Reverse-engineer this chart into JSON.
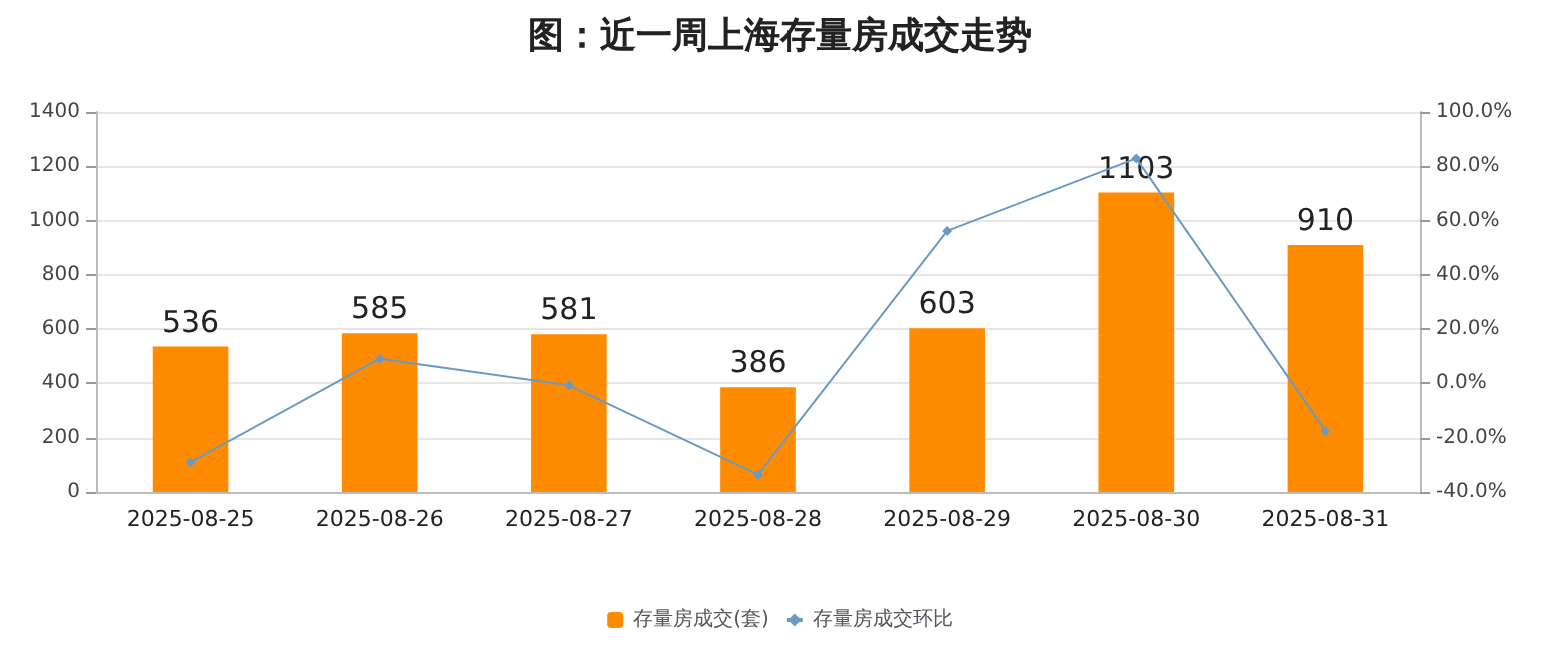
{
  "chart_data": {
    "type": "bar",
    "title": "图：近一周上海存量房成交走势",
    "categories": [
      "2025-08-25",
      "2025-08-26",
      "2025-08-27",
      "2025-08-28",
      "2025-08-29",
      "2025-08-30",
      "2025-08-31"
    ],
    "series": [
      {
        "name": "存量房成交(套)",
        "color": "#ff8c00",
        "values": [
          536,
          585,
          581,
          386,
          603,
          1103,
          910
        ],
        "value_labels": [
          "536",
          "585",
          "581",
          "386",
          "603",
          "1103",
          "910"
        ]
      },
      {
        "name": "存量房成交环比",
        "type": "line",
        "axis": "y2",
        "color": "#6a9ac4",
        "marker": "diamond",
        "values": [
          -29,
          9.1,
          -0.7,
          -33.6,
          56.2,
          82.9,
          -17.5
        ]
      }
    ],
    "ylim": [
      0,
      1400
    ],
    "yticks": [
      0,
      200,
      400,
      600,
      800,
      1000,
      1200,
      1400
    ],
    "y2lim": [
      -40,
      100
    ],
    "y2ticks": [
      {
        "value": -40,
        "label": "-40.0%"
      },
      {
        "value": -20,
        "label": "-20.0%"
      },
      {
        "value": 0,
        "label": "0.0%"
      },
      {
        "value": 20,
        "label": "20.0%"
      },
      {
        "value": 40,
        "label": "40.0%"
      },
      {
        "value": 60,
        "label": "60.0%"
      },
      {
        "value": 80,
        "label": "80.0%"
      },
      {
        "value": 100,
        "label": "100.0%"
      }
    ],
    "grid": "y",
    "legend": "bottom"
  }
}
